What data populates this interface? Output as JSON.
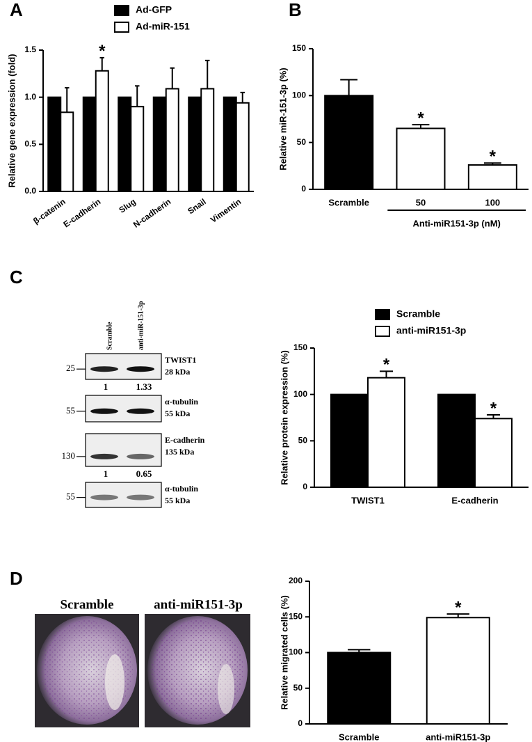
{
  "panels": [
    "A",
    "B",
    "C",
    "D"
  ],
  "chart_data": [
    {
      "type": "bar",
      "ylabel": "Relative gene expression (fold)",
      "categories": [
        "β-catenin",
        "E-cadherin",
        "Slug",
        "N-cadherin",
        "Snail",
        "Vimentin"
      ],
      "ylim": [
        0,
        1.5
      ],
      "yticks": [
        {
          "value": 0,
          "label": "0.0"
        },
        0.5,
        {
          "value": 1,
          "label": "1.0"
        },
        1.5
      ],
      "series": [
        {
          "name": "Ad-GFP",
          "color": "#000000",
          "values": [
            1,
            1,
            1,
            1,
            1,
            1
          ]
        },
        {
          "name": "Ad-miR-151",
          "color": "#ffffff",
          "values": [
            0.84,
            1.28,
            0.9,
            1.09,
            1.09,
            0.94
          ],
          "errors": [
            0.26,
            0.14,
            0.22,
            0.22,
            0.3,
            0.11
          ],
          "significance": [
            null,
            "*",
            null,
            null,
            null,
            null
          ]
        }
      ]
    },
    {
      "type": "bar",
      "ylabel": "Relative miR-151-3p (%)",
      "categories": [
        "Scramble",
        "50",
        "100"
      ],
      "group_label": "Anti-miR151-3p (nM)",
      "ylim": [
        0,
        150
      ],
      "yticks": [
        0,
        50,
        100,
        150
      ],
      "series": [
        {
          "colors": [
            "#000000",
            "#ffffff",
            "#ffffff"
          ],
          "values": [
            100,
            65,
            26
          ],
          "errors": [
            17,
            4,
            2
          ],
          "significance": [
            null,
            "*",
            "*"
          ]
        }
      ]
    },
    {
      "type": "bar",
      "ylabel": "Relative protein expression (%)",
      "categories": [
        "TWIST1",
        "E-cadherin"
      ],
      "ylim": [
        0,
        150
      ],
      "yticks": [
        0,
        50,
        100,
        150
      ],
      "series": [
        {
          "name": "Scramble",
          "color": "#000000",
          "values": [
            100,
            100
          ]
        },
        {
          "name": "anti-miR151-3p",
          "color": "#ffffff",
          "values": [
            118,
            74
          ],
          "errors": [
            7,
            4
          ],
          "significance": [
            "*",
            "*"
          ]
        }
      ]
    },
    {
      "type": "bar",
      "ylabel": "Relative migrated cells (%)",
      "categories": [
        "Scramble",
        "anti-miR151-3p"
      ],
      "ylim": [
        0,
        200
      ],
      "yticks": [
        0,
        50,
        100,
        150,
        200
      ],
      "series": [
        {
          "colors": [
            "#000000",
            "#ffffff"
          ],
          "values": [
            100,
            149
          ],
          "errors": [
            4,
            5
          ],
          "significance": [
            null,
            "*"
          ]
        }
      ]
    }
  ],
  "blot": {
    "lanes": [
      "Scramble",
      "anti-miR-151-3p"
    ],
    "rows": [
      {
        "marker": "25",
        "protein": "TWIST1",
        "size": "28 kDa",
        "quant": [
          "1",
          "1.33"
        ]
      },
      {
        "marker": "55",
        "protein": "α-tubulin",
        "size": "55 kDa"
      },
      {
        "marker": "130",
        "protein": "E-cadherin",
        "size": "135 kDa",
        "quant": [
          "1",
          "0.65"
        ]
      },
      {
        "marker": "55",
        "protein": "α-tubulin",
        "size": "55 kDa"
      }
    ]
  },
  "images": {
    "captions": [
      "Scramble",
      "anti-miR151-3p"
    ]
  }
}
